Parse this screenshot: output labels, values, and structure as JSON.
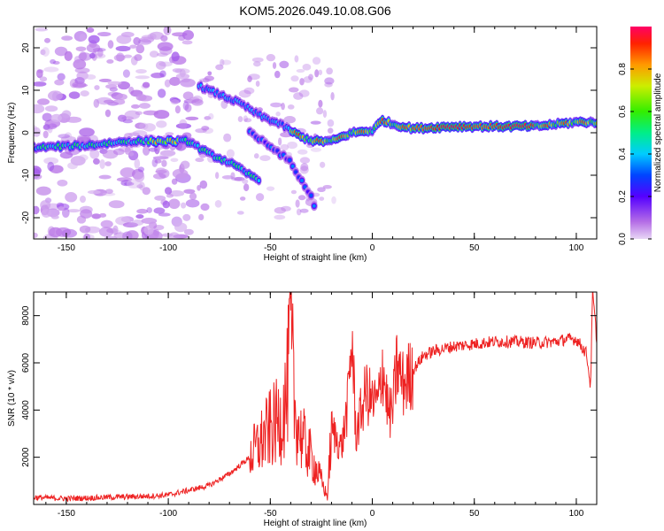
{
  "title": "KOM5.2026.049.10.08.G06",
  "chart_data": [
    {
      "type": "heatmap",
      "xlabel": "Height of straight line (km)",
      "ylabel": "Frequency (Hz)",
      "xlim": [
        -166,
        110
      ],
      "ylim": [
        -25,
        25
      ],
      "xticks": [
        -150,
        -100,
        -50,
        0,
        50,
        100
      ],
      "yticks": [
        -20,
        -10,
        0,
        10,
        20
      ],
      "colorbar": {
        "label": "Normalized spectral amplitude",
        "range": [
          0,
          1
        ],
        "ticks": [
          0.0,
          0.2,
          0.4,
          0.6,
          0.8
        ]
      },
      "ridges": [
        {
          "name": "main",
          "points": [
            [
              -166,
              -3.5
            ],
            [
              -140,
              -3
            ],
            [
              -120,
              -2
            ],
            [
              -100,
              -2
            ],
            [
              -90,
              -2
            ],
            [
              -80,
              -5
            ],
            [
              -70,
              -7
            ],
            [
              -60,
              -10
            ],
            [
              -55,
              -11
            ]
          ]
        },
        {
          "name": "upper",
          "points": [
            [
              -85,
              11
            ],
            [
              -75,
              9
            ],
            [
              -65,
              7
            ],
            [
              -55,
              4
            ],
            [
              -45,
              2
            ],
            [
              -35,
              -1
            ],
            [
              -28,
              -2
            ],
            [
              -20,
              -2
            ],
            [
              -10,
              0
            ],
            [
              0,
              0.5
            ],
            [
              5,
              3
            ],
            [
              10,
              2
            ],
            [
              20,
              1
            ],
            [
              40,
              1.5
            ],
            [
              60,
              1.5
            ],
            [
              80,
              1.5
            ],
            [
              90,
              2
            ],
            [
              100,
              2.5
            ],
            [
              110,
              2.5
            ]
          ]
        },
        {
          "name": "mid",
          "points": [
            [
              -60,
              0
            ],
            [
              -50,
              -3
            ],
            [
              -40,
              -7
            ],
            [
              -35,
              -11
            ],
            [
              -30,
              -15
            ],
            [
              -28,
              -18
            ]
          ]
        }
      ]
    },
    {
      "type": "line",
      "xlabel": "Height of straight line (km)",
      "ylabel": "SNR (10 * v/v)",
      "xlim": [
        -166,
        110
      ],
      "ylim": [
        0,
        9000
      ],
      "xticks": [
        -150,
        -100,
        -50,
        0,
        50,
        100
      ],
      "yticks": [
        2000,
        4000,
        6000,
        8000
      ],
      "color": "#ee2222",
      "series": [
        {
          "name": "SNR",
          "x": [
            -166,
            -150,
            -130,
            -110,
            -100,
            -90,
            -80,
            -70,
            -60,
            -55,
            -50,
            -45,
            -42,
            -40,
            -38,
            -35,
            -30,
            -25,
            -22,
            -20,
            -15,
            -12,
            -10,
            -8,
            -5,
            -3,
            0,
            3,
            5,
            8,
            10,
            12,
            15,
            18,
            20,
            25,
            30,
            40,
            50,
            60,
            70,
            80,
            90,
            95,
            100,
            105,
            107,
            108,
            110
          ],
          "y": [
            300,
            250,
            300,
            350,
            400,
            600,
            800,
            1300,
            2000,
            2600,
            3200,
            3600,
            4500,
            7200,
            4000,
            2900,
            2000,
            1000,
            300,
            3200,
            2400,
            4300,
            7100,
            2900,
            4100,
            4800,
            4300,
            4300,
            6000,
            3800,
            4000,
            5900,
            5100,
            5400,
            5700,
            6300,
            6500,
            6700,
            6800,
            6900,
            6900,
            6850,
            6900,
            7000,
            7000,
            6400,
            5000,
            9000,
            7000
          ]
        }
      ]
    }
  ]
}
